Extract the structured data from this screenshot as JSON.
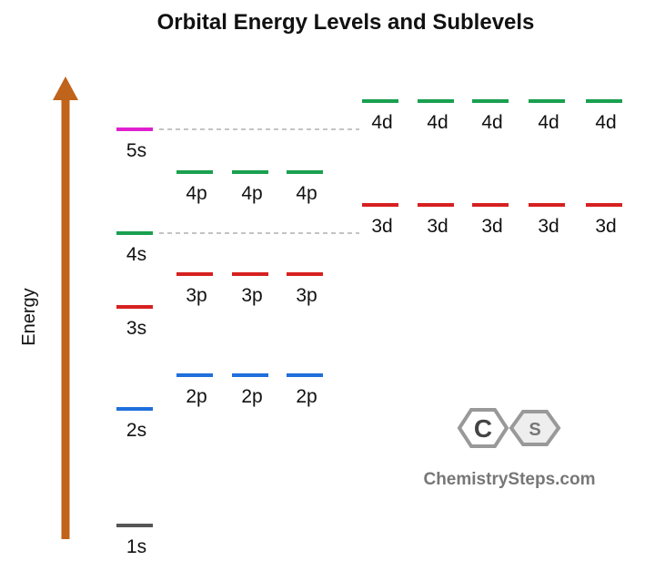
{
  "title": "Orbital Energy Levels and Sublevels",
  "axis_label": "Energy",
  "rows": [
    {
      "color": "#555555",
      "labels": [
        "1s"
      ]
    },
    {
      "color": "#1f6fdc",
      "labels": [
        "2s"
      ]
    },
    {
      "color": "#d62020",
      "labels": [
        "3s"
      ]
    },
    {
      "color": "#1aa050",
      "labels": [
        "4s"
      ]
    },
    {
      "color": "#e020d0",
      "labels": [
        "5s"
      ]
    },
    {
      "color": "#1f6fdc",
      "labels": [
        "2p",
        "2p",
        "2p"
      ]
    },
    {
      "color": "#d62020",
      "labels": [
        "3p",
        "3p",
        "3p"
      ]
    },
    {
      "color": "#1aa050",
      "labels": [
        "4p",
        "4p",
        "4p"
      ]
    },
    {
      "color": "#d62020",
      "labels": [
        "3d",
        "3d",
        "3d",
        "3d",
        "3d"
      ]
    },
    {
      "color": "#1aa050",
      "labels": [
        "4d",
        "4d",
        "4d",
        "4d",
        "4d"
      ]
    }
  ],
  "logo": {
    "letters": [
      "C",
      "S"
    ],
    "text": "ChemistrySteps.com"
  }
}
